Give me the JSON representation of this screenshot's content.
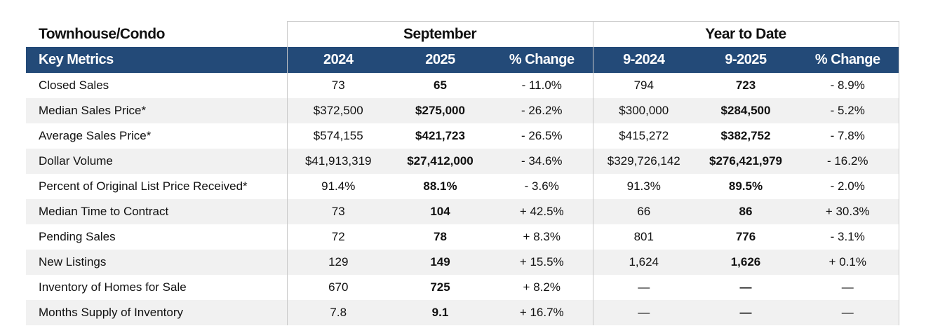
{
  "title": "Townhouse/Condo",
  "groups": [
    "September",
    "Year to Date"
  ],
  "header": [
    "Key Metrics",
    "2024",
    "2025",
    "% Change",
    "9-2024",
    "9-2025",
    "% Change"
  ],
  "rows": [
    [
      "Closed Sales",
      "73",
      "65",
      "- 11.0%",
      "794",
      "723",
      "- 8.9%"
    ],
    [
      "Median Sales Price*",
      "$372,500",
      "$275,000",
      "- 26.2%",
      "$300,000",
      "$284,500",
      "- 5.2%"
    ],
    [
      "Average Sales Price*",
      "$574,155",
      "$421,723",
      "- 26.5%",
      "$415,272",
      "$382,752",
      "- 7.8%"
    ],
    [
      "Dollar Volume",
      "$41,913,319",
      "$27,412,000",
      "- 34.6%",
      "$329,726,142",
      "$276,421,979",
      "- 16.2%"
    ],
    [
      "Percent of Original List Price Received*",
      "91.4%",
      "88.1%",
      "- 3.6%",
      "91.3%",
      "89.5%",
      "- 2.0%"
    ],
    [
      "Median Time to Contract",
      "73",
      "104",
      "+ 42.5%",
      "66",
      "86",
      "+ 30.3%"
    ],
    [
      "Pending Sales",
      "72",
      "78",
      "+ 8.3%",
      "801",
      "776",
      "- 3.1%"
    ],
    [
      "New Listings",
      "129",
      "149",
      "+ 15.5%",
      "1,624",
      "1,626",
      "+ 0.1%"
    ],
    [
      "Inventory of Homes for Sale",
      "670",
      "725",
      "+ 8.2%",
      "—",
      "—",
      "—"
    ],
    [
      "Months Supply of Inventory",
      "7.8",
      "9.1",
      "+ 16.7%",
      "—",
      "—",
      "—"
    ]
  ]
}
